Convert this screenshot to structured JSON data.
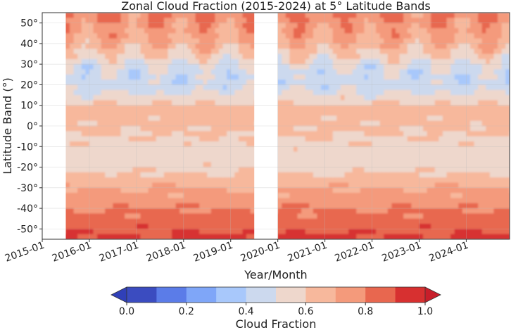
{
  "chart_data": {
    "type": "heatmap",
    "title": "Zonal Cloud Fraction (2015-2024) at 5° Latitude Bands",
    "xlabel": "Year/Month",
    "ylabel": "Latitude Band (°)",
    "x_ticks": [
      "2015-01",
      "2016-01",
      "2017-01",
      "2018-01",
      "2019-01",
      "2020-01",
      "2021-01",
      "2022-01",
      "2023-01",
      "2024-01"
    ],
    "y_ticks": [
      "50°",
      "40°",
      "30°",
      "20°",
      "10°",
      "0°",
      "-10°",
      "-20°",
      "-30°",
      "-40°",
      "-50°"
    ],
    "ylim": [
      -55,
      55
    ],
    "data_gaps": [
      {
        "start": "2015-01",
        "end": "2015-07"
      },
      {
        "start": "2019-07",
        "end": "2020-01"
      }
    ],
    "grid": true,
    "colorbar": {
      "label": "Cloud Fraction",
      "ticks": [
        "0.0",
        "0.2",
        "0.4",
        "0.6",
        "0.8",
        "1.0"
      ],
      "levels": [
        0.0,
        0.1,
        0.2,
        0.3,
        0.4,
        0.5,
        0.6,
        0.7,
        0.8,
        0.9,
        1.0
      ],
      "colors": [
        "#3b4cc0",
        "#5b7ce8",
        "#7fa6f8",
        "#a8c8fb",
        "#ccd9ee",
        "#eed7cc",
        "#f7b89c",
        "#f49a7b",
        "#e8674f",
        "#d73030"
      ],
      "orientation": "horizontal",
      "extend": "both"
    },
    "profile": {
      "latitudes": [
        -55,
        -50,
        -45,
        -40,
        -35,
        -30,
        -25,
        -20,
        -15,
        -10,
        -5,
        0,
        5,
        8,
        10,
        15,
        20,
        25,
        30,
        35,
        40,
        45,
        50,
        55
      ],
      "values": [
        0.92,
        0.88,
        0.83,
        0.8,
        0.74,
        0.7,
        0.62,
        0.57,
        0.55,
        0.57,
        0.6,
        0.62,
        0.63,
        0.68,
        0.61,
        0.52,
        0.45,
        0.45,
        0.5,
        0.6,
        0.68,
        0.72,
        0.76,
        0.8
      ]
    }
  }
}
